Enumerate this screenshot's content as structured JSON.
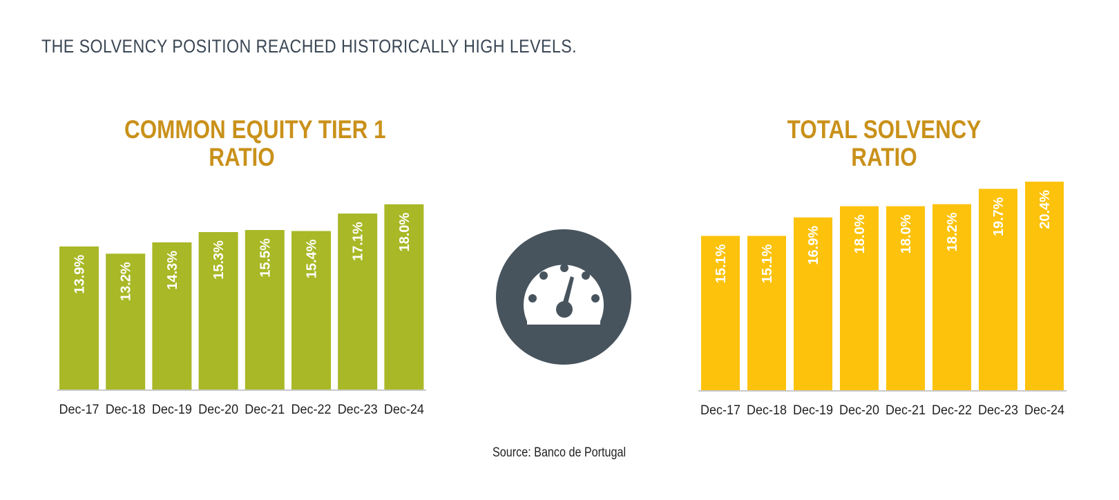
{
  "headline": "THE SOLVENCY POSITION REACHED HISTORICALLY HIGH LEVELS.",
  "source": "Source: Banco de Portugal",
  "icon": "speedometer-icon",
  "colors": {
    "cet1": "#a8b826",
    "total": "#fcc20c",
    "title": "#c9911a",
    "icon_circle": "#47545e"
  },
  "chart_data": [
    {
      "type": "bar",
      "title_lines": [
        "COMMON EQUITY TIER 1",
        "RATIO"
      ],
      "categories": [
        "Dec-17",
        "Dec-18",
        "Dec-19",
        "Dec-20",
        "Dec-21",
        "Dec-22",
        "Dec-23",
        "Dec-24"
      ],
      "values": [
        13.9,
        13.2,
        14.3,
        15.3,
        15.5,
        15.4,
        17.1,
        18.0
      ],
      "labels": [
        "13.9%",
        "13.2%",
        "14.3%",
        "15.3%",
        "15.5%",
        "15.4%",
        "17.1%",
        "18.0%"
      ],
      "ylim": [
        0,
        20
      ],
      "color": "#a8b826",
      "grid": false,
      "yaxis_visible": false
    },
    {
      "type": "bar",
      "title_lines": [
        "TOTAL SOLVENCY",
        "RATIO"
      ],
      "categories": [
        "Dec-17",
        "Dec-18",
        "Dec-19",
        "Dec-20",
        "Dec-21",
        "Dec-22",
        "Dec-23",
        "Dec-24"
      ],
      "values": [
        15.1,
        15.1,
        16.9,
        18.0,
        18.0,
        18.2,
        19.7,
        20.4
      ],
      "labels": [
        "15.1%",
        "15.1%",
        "16.9%",
        "18.0%",
        "18.0%",
        "18.2%",
        "19.7%",
        "20.4%"
      ],
      "ylim": [
        0,
        22
      ],
      "color": "#fcc20c",
      "grid": false,
      "yaxis_visible": false
    }
  ]
}
